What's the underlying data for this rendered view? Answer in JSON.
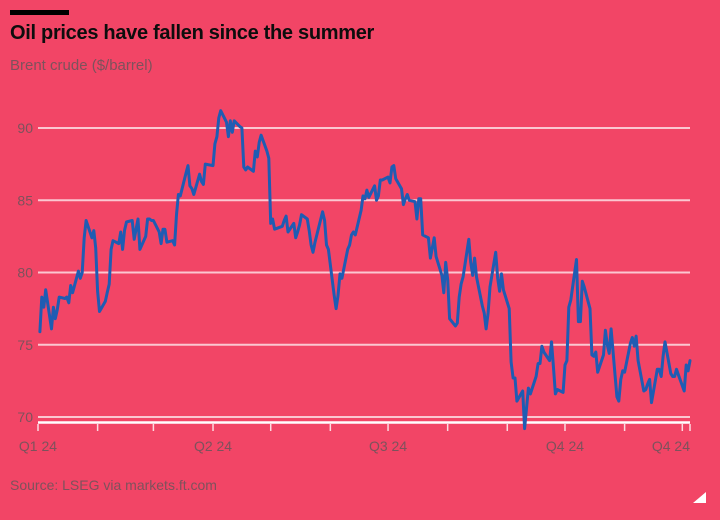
{
  "header": {
    "title": "Oil prices have fallen since the summer",
    "subtitle": "Brent crude ($/barrel)"
  },
  "footer": {
    "source": "Source: LSEG via markets.ft.com"
  },
  "colors": {
    "background": "#f24566",
    "title_text": "#0d0d0d",
    "muted_text": "#7d525c",
    "accent_bar": "#000000",
    "line": "#1f5cb3",
    "gridline": "rgba(255,255,255,0.7)",
    "axis_line": "#ffffff",
    "tick": "rgba(255,255,255,0.8)",
    "corner_triangle": "#ffffff"
  },
  "chart_data": {
    "type": "line",
    "title": "Oil prices have fallen since the summer",
    "ylabel": "Brent crude ($/barrel)",
    "xlabel": "",
    "grid": "horizontal",
    "legend": "none",
    "x_unit": "day_of_year_2024",
    "ylim": [
      70,
      90
    ],
    "yticks": [
      90,
      85,
      80,
      75,
      70
    ],
    "xlim_days": [
      1,
      340
    ],
    "month_tick_days": [
      1,
      32,
      61,
      92,
      122,
      153,
      183,
      214,
      245,
      275,
      306,
      336,
      340
    ],
    "xtick_labels": [
      {
        "label": "Q1 24",
        "day": 1,
        "anchor": "middle"
      },
      {
        "label": "Q2 24",
        "day": 92,
        "anchor": "middle"
      },
      {
        "label": "Q3 24",
        "day": 183,
        "anchor": "middle"
      },
      {
        "label": "Q4 24",
        "day": 275,
        "anchor": "middle"
      },
      {
        "label": "Q4 24",
        "day": 340,
        "anchor": "end"
      }
    ],
    "series": [
      {
        "name": "Brent crude ($/barrel)",
        "points": [
          [
            2,
            75.9
          ],
          [
            3,
            78.3
          ],
          [
            4,
            77.6
          ],
          [
            5,
            78.8
          ],
          [
            8,
            76.1
          ],
          [
            9,
            77.6
          ],
          [
            10,
            76.8
          ],
          [
            11,
            77.4
          ],
          [
            12,
            78.3
          ],
          [
            15,
            78.2
          ],
          [
            16,
            78.3
          ],
          [
            17,
            77.9
          ],
          [
            18,
            79.1
          ],
          [
            19,
            78.6
          ],
          [
            22,
            80.1
          ],
          [
            23,
            79.6
          ],
          [
            24,
            80.0
          ],
          [
            25,
            82.4
          ],
          [
            26,
            83.6
          ],
          [
            29,
            82.4
          ],
          [
            30,
            82.9
          ],
          [
            31,
            81.7
          ],
          [
            32,
            78.7
          ],
          [
            33,
            77.3
          ],
          [
            36,
            78.0
          ],
          [
            37,
            78.6
          ],
          [
            38,
            79.2
          ],
          [
            39,
            81.6
          ],
          [
            40,
            82.2
          ],
          [
            43,
            82.0
          ],
          [
            44,
            82.8
          ],
          [
            45,
            81.6
          ],
          [
            46,
            82.9
          ],
          [
            47,
            83.5
          ],
          [
            50,
            83.6
          ],
          [
            51,
            82.3
          ],
          [
            52,
            83.0
          ],
          [
            53,
            83.7
          ],
          [
            54,
            81.6
          ],
          [
            57,
            82.5
          ],
          [
            58,
            83.7
          ],
          [
            59,
            83.7
          ],
          [
            60,
            83.6
          ],
          [
            61,
            83.6
          ],
          [
            64,
            82.8
          ],
          [
            65,
            82.0
          ],
          [
            66,
            83.0
          ],
          [
            67,
            83.0
          ],
          [
            68,
            82.1
          ],
          [
            71,
            82.2
          ],
          [
            72,
            81.9
          ],
          [
            73,
            84.0
          ],
          [
            74,
            85.4
          ],
          [
            75,
            85.3
          ],
          [
            78,
            86.9
          ],
          [
            79,
            87.4
          ],
          [
            80,
            86.0
          ],
          [
            81,
            85.8
          ],
          [
            82,
            85.4
          ],
          [
            85,
            86.8
          ],
          [
            86,
            86.3
          ],
          [
            87,
            86.1
          ],
          [
            88,
            87.5
          ],
          [
            92,
            87.4
          ],
          [
            93,
            88.9
          ],
          [
            94,
            89.4
          ],
          [
            95,
            90.7
          ],
          [
            96,
            91.2
          ],
          [
            99,
            90.4
          ],
          [
            100,
            89.4
          ],
          [
            101,
            90.5
          ],
          [
            102,
            89.7
          ],
          [
            103,
            90.5
          ],
          [
            106,
            90.1
          ],
          [
            107,
            90.0
          ],
          [
            108,
            87.3
          ],
          [
            109,
            87.1
          ],
          [
            110,
            87.3
          ],
          [
            113,
            87.0
          ],
          [
            114,
            88.4
          ],
          [
            115,
            88.0
          ],
          [
            116,
            89.0
          ],
          [
            117,
            89.5
          ],
          [
            120,
            88.4
          ],
          [
            121,
            87.9
          ],
          [
            122,
            83.4
          ],
          [
            123,
            83.7
          ],
          [
            124,
            83.0
          ],
          [
            128,
            83.2
          ],
          [
            129,
            83.6
          ],
          [
            130,
            83.9
          ],
          [
            131,
            82.8
          ],
          [
            134,
            83.4
          ],
          [
            135,
            82.4
          ],
          [
            136,
            82.8
          ],
          [
            137,
            83.3
          ],
          [
            138,
            84.0
          ],
          [
            141,
            83.7
          ],
          [
            142,
            82.9
          ],
          [
            143,
            81.9
          ],
          [
            144,
            81.4
          ],
          [
            145,
            82.1
          ],
          [
            149,
            84.2
          ],
          [
            150,
            83.6
          ],
          [
            151,
            81.9
          ],
          [
            152,
            81.6
          ],
          [
            155,
            78.4
          ],
          [
            156,
            77.5
          ],
          [
            157,
            78.4
          ],
          [
            158,
            79.9
          ],
          [
            159,
            79.6
          ],
          [
            162,
            81.6
          ],
          [
            163,
            81.9
          ],
          [
            164,
            82.6
          ],
          [
            165,
            82.8
          ],
          [
            166,
            82.6
          ],
          [
            169,
            84.3
          ],
          [
            170,
            85.3
          ],
          [
            171,
            85.1
          ],
          [
            172,
            85.7
          ],
          [
            173,
            85.2
          ],
          [
            176,
            86.0
          ],
          [
            177,
            85.0
          ],
          [
            178,
            85.3
          ],
          [
            179,
            86.4
          ],
          [
            180,
            86.4
          ],
          [
            183,
            86.6
          ],
          [
            184,
            86.2
          ],
          [
            185,
            87.3
          ],
          [
            186,
            87.4
          ],
          [
            187,
            86.5
          ],
          [
            190,
            85.8
          ],
          [
            191,
            84.7
          ],
          [
            192,
            85.1
          ],
          [
            193,
            85.4
          ],
          [
            194,
            85.0
          ],
          [
            197,
            84.9
          ],
          [
            198,
            83.7
          ],
          [
            199,
            85.1
          ],
          [
            200,
            85.1
          ],
          [
            201,
            82.6
          ],
          [
            204,
            82.4
          ],
          [
            205,
            81.0
          ],
          [
            206,
            81.7
          ],
          [
            207,
            82.4
          ],
          [
            208,
            81.1
          ],
          [
            211,
            79.8
          ],
          [
            212,
            78.6
          ],
          [
            213,
            80.7
          ],
          [
            214,
            79.5
          ],
          [
            215,
            76.8
          ],
          [
            218,
            76.3
          ],
          [
            219,
            76.5
          ],
          [
            220,
            78.3
          ],
          [
            221,
            79.2
          ],
          [
            222,
            79.7
          ],
          [
            225,
            82.3
          ],
          [
            226,
            80.7
          ],
          [
            227,
            79.8
          ],
          [
            228,
            81.0
          ],
          [
            229,
            79.7
          ],
          [
            232,
            77.7
          ],
          [
            233,
            77.2
          ],
          [
            234,
            76.1
          ],
          [
            235,
            77.2
          ],
          [
            236,
            79.0
          ],
          [
            239,
            81.4
          ],
          [
            240,
            79.6
          ],
          [
            241,
            78.7
          ],
          [
            242,
            79.9
          ],
          [
            243,
            78.8
          ],
          [
            246,
            77.5
          ],
          [
            247,
            73.8
          ],
          [
            248,
            72.7
          ],
          [
            249,
            72.7
          ],
          [
            250,
            71.1
          ],
          [
            253,
            71.8
          ],
          [
            254,
            69.2
          ],
          [
            255,
            70.6
          ],
          [
            256,
            72.0
          ],
          [
            257,
            71.6
          ],
          [
            260,
            72.8
          ],
          [
            261,
            73.7
          ],
          [
            262,
            73.7
          ],
          [
            263,
            74.9
          ],
          [
            264,
            74.5
          ],
          [
            267,
            73.9
          ],
          [
            268,
            75.2
          ],
          [
            269,
            73.5
          ],
          [
            270,
            71.6
          ],
          [
            271,
            71.9
          ],
          [
            274,
            71.7
          ],
          [
            275,
            73.6
          ],
          [
            276,
            73.9
          ],
          [
            277,
            77.6
          ],
          [
            278,
            78.1
          ],
          [
            281,
            80.9
          ],
          [
            282,
            76.6
          ],
          [
            283,
            76.6
          ],
          [
            284,
            79.4
          ],
          [
            285,
            79.0
          ],
          [
            288,
            77.5
          ],
          [
            289,
            74.3
          ],
          [
            290,
            74.2
          ],
          [
            291,
            74.5
          ],
          [
            292,
            73.1
          ],
          [
            295,
            74.3
          ],
          [
            296,
            76.0
          ],
          [
            297,
            75.0
          ],
          [
            298,
            74.4
          ],
          [
            299,
            76.1
          ],
          [
            302,
            71.4
          ],
          [
            303,
            71.1
          ],
          [
            304,
            72.6
          ],
          [
            305,
            73.2
          ],
          [
            306,
            73.1
          ],
          [
            309,
            75.1
          ],
          [
            310,
            75.5
          ],
          [
            311,
            74.9
          ],
          [
            312,
            75.6
          ],
          [
            313,
            73.9
          ],
          [
            316,
            71.8
          ],
          [
            317,
            71.9
          ],
          [
            318,
            72.3
          ],
          [
            319,
            72.6
          ],
          [
            320,
            71.0
          ],
          [
            323,
            73.3
          ],
          [
            324,
            73.3
          ],
          [
            325,
            72.8
          ],
          [
            326,
            74.2
          ],
          [
            327,
            75.2
          ],
          [
            330,
            73.0
          ],
          [
            331,
            72.8
          ],
          [
            332,
            72.8
          ],
          [
            333,
            73.3
          ],
          [
            334,
            72.9
          ],
          [
            337,
            71.8
          ],
          [
            338,
            73.6
          ],
          [
            339,
            73.2
          ],
          [
            340,
            73.9
          ]
        ]
      }
    ]
  }
}
